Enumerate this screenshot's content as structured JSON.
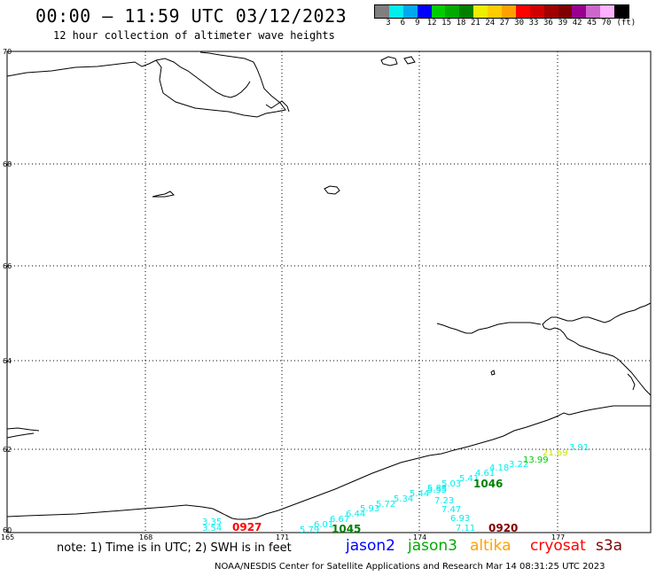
{
  "header": {
    "title": "00:00 – 11:59 UTC 03/12/2023",
    "subtitle": "12 hour collection of altimeter wave heights"
  },
  "colorbar": {
    "colors": [
      "#7f7f7f",
      "#00eeee",
      "#00a8f0",
      "#0000ff",
      "#00cc00",
      "#00aa00",
      "#008000",
      "#eeee00",
      "#ffcc00",
      "#ffa000",
      "#ff0000",
      "#d00000",
      "#a00000",
      "#800000",
      "#9a0090",
      "#cc66cc",
      "#ffb0ff",
      "#000000"
    ],
    "labels": [
      "3",
      "6",
      "9",
      "12",
      "15",
      "18",
      "21",
      "24",
      "27",
      "30",
      "33",
      "36",
      "39",
      "42",
      "45",
      "70",
      "(ft)"
    ]
  },
  "map": {
    "lat_labels": [
      "70",
      "68",
      "66",
      "64",
      "62",
      "60"
    ],
    "lon_labels": [
      "165",
      "168",
      "171",
      "174",
      "177"
    ],
    "swh_points": [
      {
        "v": "3.35",
        "c": "#00eeee"
      },
      {
        "v": "3.54",
        "c": "#00eeee"
      },
      {
        "v": "5.79",
        "c": "#00eeee"
      },
      {
        "v": "6.01",
        "c": "#00eeee"
      },
      {
        "v": "6.67",
        "c": "#00eeee"
      },
      {
        "v": "6.44",
        "c": "#00eeee"
      },
      {
        "v": "5.93",
        "c": "#00eeee"
      },
      {
        "v": "5.72",
        "c": "#00eeee"
      },
      {
        "v": "5.34",
        "c": "#00eeee"
      },
      {
        "v": "5.44",
        "c": "#00eeee"
      },
      {
        "v": "5.55",
        "c": "#00eeee"
      },
      {
        "v": "5.83",
        "c": "#00eeee"
      },
      {
        "v": "5.03",
        "c": "#00eeee"
      },
      {
        "v": "5.41",
        "c": "#00eeee"
      },
      {
        "v": "4.61",
        "c": "#00eeee"
      },
      {
        "v": "4.18",
        "c": "#00eeee"
      },
      {
        "v": "3.22",
        "c": "#00eeee"
      },
      {
        "v": "13.99",
        "c": "#00cc00"
      },
      {
        "v": "21.69",
        "c": "#c8e000"
      },
      {
        "v": "3.91",
        "c": "#00eeee"
      },
      {
        "v": "7.23",
        "c": "#00eeee"
      },
      {
        "v": "7.47",
        "c": "#00eeee"
      },
      {
        "v": "6.93",
        "c": "#00eeee"
      },
      {
        "v": "7.11",
        "c": "#00eeee"
      }
    ],
    "pass_labels": [
      {
        "t": "0927",
        "c": "#ff0000"
      },
      {
        "t": "1045",
        "c": "#008000"
      },
      {
        "t": "1046",
        "c": "#008000"
      },
      {
        "t": "0920",
        "c": "#800000"
      }
    ]
  },
  "footer": {
    "note": "note: 1) Time is in UTC; 2) SWH is in feet",
    "legend": [
      {
        "name": "jason2",
        "color": "#0000ff"
      },
      {
        "name": "jason3",
        "color": "#00aa00"
      },
      {
        "name": "altika",
        "color": "#ffa000"
      },
      {
        "name": "cryosat",
        "color": "#ff0000"
      },
      {
        "name": "s3a",
        "color": "#800000"
      }
    ],
    "credit": "NOAA/NESDIS Center for Satellite Applications and Research    Mar 14 08:31:25 UTC 2023"
  }
}
